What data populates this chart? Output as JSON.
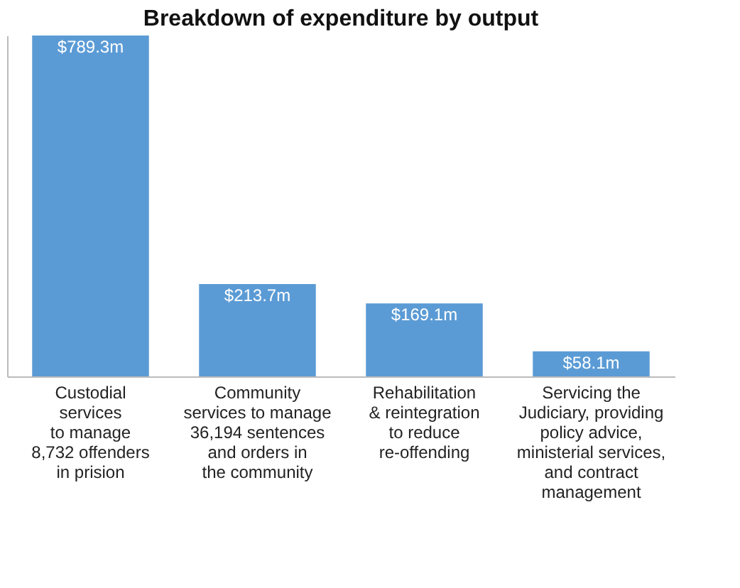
{
  "chart_data": {
    "type": "bar",
    "title": "Breakdown of expenditure by output",
    "categories": [
      "Custodial\nservices\nto manage\n8,732 offenders\nin prision",
      "Community\nservices to manage\n36,194 sentences\nand orders in\nthe community",
      "Rehabilitation\n& reintegration\nto reduce\nre-offending",
      "Servicing the\nJudiciary, providing\npolicy advice,\nministerial services,\nand contract\nmanagement"
    ],
    "values": [
      789.3,
      213.7,
      169.1,
      58.1
    ],
    "value_labels": [
      "$789.3m",
      "$213.7m",
      "$169.1m",
      "$58.1m"
    ],
    "color": "#5b9bd5"
  }
}
